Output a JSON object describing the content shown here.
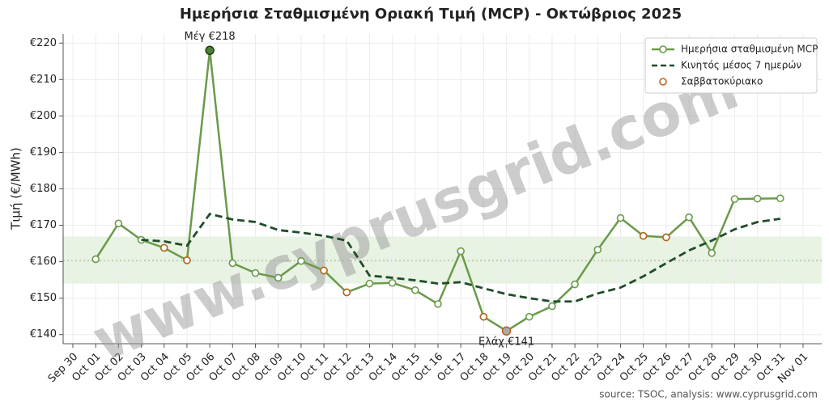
{
  "chart_data": {
    "type": "line",
    "title": "Ημερήσια Σταθμισμένη Οριακή Τιμή (MCP) - Οκτώβριος 2025",
    "y_label": "Τιμή (€/MWh)",
    "source": "source: TSOC, analysis: www.cyprusgrid.com",
    "watermark": "www.cyprusgrid.com",
    "x": [
      "Oct 01",
      "Oct 02",
      "Oct 03",
      "Oct 04",
      "Oct 05",
      "Oct 06",
      "Oct 07",
      "Oct 08",
      "Oct 09",
      "Oct 10",
      "Oct 11",
      "Oct 12",
      "Oct 13",
      "Oct 14",
      "Oct 15",
      "Oct 16",
      "Oct 17",
      "Oct 18",
      "Oct 19",
      "Oct 20",
      "Oct 21",
      "Oct 22",
      "Oct 23",
      "Oct 24",
      "Oct 25",
      "Oct 26",
      "Oct 27",
      "Oct 28",
      "Oct 29",
      "Oct 30",
      "Oct 31"
    ],
    "xticks": [
      "Sep 30",
      "Oct 01",
      "Oct 02",
      "Oct 03",
      "Oct 04",
      "Oct 05",
      "Oct 06",
      "Oct 07",
      "Oct 08",
      "Oct 09",
      "Oct 10",
      "Oct 11",
      "Oct 12",
      "Oct 13",
      "Oct 14",
      "Oct 15",
      "Oct 16",
      "Oct 17",
      "Oct 18",
      "Oct 19",
      "Oct 20",
      "Oct 21",
      "Oct 22",
      "Oct 23",
      "Oct 24",
      "Oct 25",
      "Oct 26",
      "Oct 27",
      "Oct 28",
      "Oct 29",
      "Oct 30",
      "Oct 31",
      "Nov 01"
    ],
    "ylim": [
      137.5,
      222.5
    ],
    "yticks": [
      {
        "value": 140,
        "label": "€140"
      },
      {
        "value": 150,
        "label": "€150"
      },
      {
        "value": 160,
        "label": "€160"
      },
      {
        "value": 170,
        "label": "€170"
      },
      {
        "value": 180,
        "label": "€180"
      },
      {
        "value": 190,
        "label": "€190"
      },
      {
        "value": 200,
        "label": "€200"
      },
      {
        "value": 210,
        "label": "€210"
      },
      {
        "value": 220,
        "label": "€220"
      }
    ],
    "grid": true,
    "legend": "upper right",
    "band": [
      154.0,
      166.9
    ],
    "band_color": "#e8f3e3",
    "mean_line": 160.3,
    "series": [
      {
        "name": "Ημερήσια σταθμισμένη MCP",
        "color": "#6a9a4a",
        "style": "line-marker",
        "values": [
          160.7,
          170.5,
          166.0,
          163.8,
          160.4,
          218,
          159.6,
          156.9,
          155.6,
          160.2,
          157.6,
          151.6,
          154.0,
          154.2,
          152.2,
          148.4,
          162.9,
          144.9,
          141,
          144.9,
          147.8,
          153.8,
          163.3,
          172.0,
          167.1,
          166.7,
          172.2,
          162.4,
          177.2,
          177.3,
          177.4
        ]
      },
      {
        "name": "Κινητός μέσος 7 ημερών",
        "color": "#1f4d2a",
        "style": "dashed",
        "values": [
          null,
          null,
          166.0,
          165.6,
          164.4,
          173.1,
          171.6,
          170.9,
          168.7,
          168.0,
          167.1,
          165.8,
          156.2,
          155.6,
          154.9,
          154.0,
          154.4,
          152.7,
          151.1,
          150.0,
          149.1,
          149.1,
          151.3,
          152.9,
          156.0,
          159.6,
          163.1,
          165.8,
          168.9,
          170.9,
          171.8
        ]
      },
      {
        "name": "Σαββατοκύριακο",
        "color": "#b5651d",
        "style": "marker",
        "values": [
          null,
          null,
          null,
          163.8,
          160.4,
          null,
          null,
          null,
          null,
          null,
          157.6,
          151.6,
          null,
          null,
          null,
          null,
          null,
          144.9,
          141,
          null,
          null,
          null,
          null,
          null,
          167.1,
          166.7,
          null,
          null,
          null,
          null,
          null
        ]
      }
    ],
    "annotations": [
      {
        "text": "Μέγ €218",
        "x": "Oct 06",
        "y": 218,
        "position": "above"
      },
      {
        "text": "Ελάχ €141",
        "x": "Oct 19",
        "y": 141,
        "position": "below"
      }
    ]
  }
}
